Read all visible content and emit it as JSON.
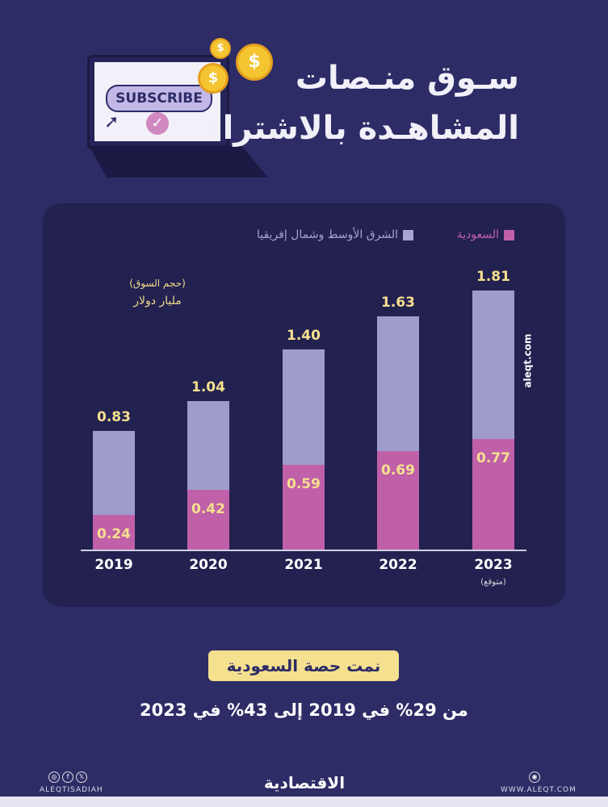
{
  "header": {
    "title_line1": "سـوق منـصات",
    "title_line2": "المشاهـدة بالاشتراك",
    "illustration_text": "SUBSCRIBE"
  },
  "chart_data": {
    "type": "bar",
    "stacked": true,
    "categories": [
      "2019",
      "2020",
      "2021",
      "2022",
      "2023"
    ],
    "category_notes": {
      "2023": "(متوقع)"
    },
    "series": [
      {
        "name": "السعودية",
        "values": [
          0.24,
          0.42,
          0.59,
          0.69,
          0.77
        ],
        "color": "#c060a8"
      },
      {
        "name": "الشرق الأوسط وشمال إفريقيا",
        "totals": [
          0.83,
          1.04,
          1.4,
          1.63,
          1.81
        ],
        "color": "#9f9ccc"
      }
    ],
    "ylabel_line1": "(حجم السوق)",
    "ylabel_line2": "مليار دولار",
    "ylim": [
      0,
      1.81
    ],
    "grid": false,
    "legend": "top-right",
    "watermark": "aleqt.com"
  },
  "summary": {
    "badge": "نمت حصة السعودية",
    "text": "من 29% في 2019 إلى 43% في 2023"
  },
  "footer": {
    "social_handle": "ALEQTISADIAH",
    "logo": "الاقتصادية",
    "website": "WWW.ALEQT.COM"
  },
  "colors": {
    "background": "#2d2c66",
    "panel": "#232150",
    "accent": "#f5e08f"
  }
}
